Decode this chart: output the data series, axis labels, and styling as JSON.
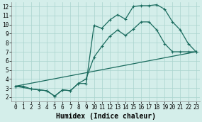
{
  "background_color": "#d4eeea",
  "grid_color": "#aad4ce",
  "line_color": "#1a6b5e",
  "line_width": 0.9,
  "marker": "+",
  "marker_size": 3.5,
  "xlabel": "Humidex (Indice chaleur)",
  "xlabel_fontsize": 7,
  "xlim": [
    -0.5,
    23.5
  ],
  "ylim": [
    1.5,
    12.5
  ],
  "xticks": [
    0,
    1,
    2,
    3,
    4,
    5,
    6,
    7,
    8,
    9,
    10,
    11,
    12,
    13,
    14,
    15,
    16,
    17,
    18,
    19,
    20,
    21,
    22,
    23
  ],
  "yticks": [
    2,
    3,
    4,
    5,
    6,
    7,
    8,
    9,
    10,
    11,
    12
  ],
  "tick_fontsize": 5.5,
  "curve1_x": [
    0,
    1,
    2,
    3,
    4,
    5,
    6,
    7,
    8,
    9,
    10,
    11,
    12,
    13,
    14,
    15,
    16,
    17,
    18,
    19,
    20,
    21,
    22,
    23
  ],
  "curve1_y": [
    3.2,
    3.2,
    2.9,
    2.8,
    2.7,
    2.1,
    2.8,
    2.7,
    3.5,
    3.5,
    9.9,
    9.6,
    10.5,
    11.1,
    10.6,
    12.0,
    12.1,
    12.1,
    12.2,
    11.7,
    10.3,
    9.4,
    7.9,
    7.0
  ],
  "curve2_x": [
    0,
    2,
    3,
    4,
    5,
    6,
    7,
    8,
    9,
    10,
    11,
    12,
    13,
    14,
    15,
    16,
    17,
    18,
    19,
    20,
    21,
    22,
    23
  ],
  "curve2_y": [
    3.2,
    2.9,
    2.8,
    2.7,
    2.1,
    2.8,
    2.7,
    3.5,
    4.0,
    6.4,
    7.6,
    8.7,
    9.4,
    8.8,
    9.5,
    10.3,
    10.3,
    9.4,
    7.9,
    7.0,
    7.0,
    7.0,
    7.0
  ],
  "curve3_x": [
    0,
    23
  ],
  "curve3_y": [
    3.2,
    7.0
  ]
}
